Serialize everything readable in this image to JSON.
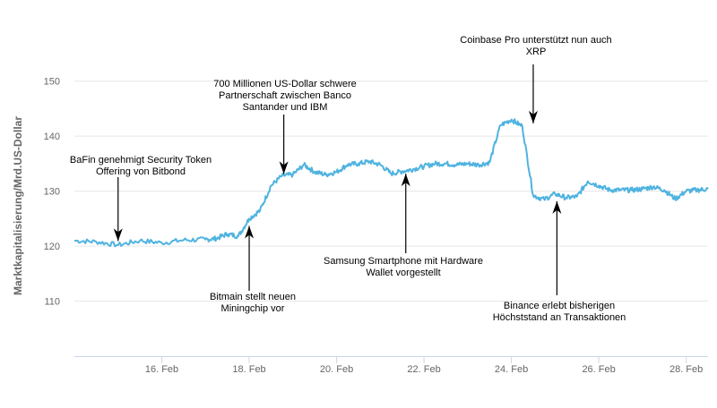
{
  "colors": {
    "series": "#4fb3e0",
    "arrow": "#000000"
  },
  "chart_data": {
    "type": "line",
    "ylabel": "Marktkapitalisierung/Mrd.US-Dollar",
    "ylim": [
      100,
      155
    ],
    "xlim": [
      "2019-02-14",
      "2019-02-28 12:00"
    ],
    "yticks": [
      110,
      120,
      130,
      140,
      150
    ],
    "xticks": [
      "16. Feb",
      "18. Feb",
      "20. Feb",
      "22. Feb",
      "24. Feb",
      "26. Feb",
      "28. Feb"
    ],
    "grid": true,
    "legend": "none",
    "series": [
      {
        "x": [
          "2019-02-14 00:00",
          "2019-02-14 12:00",
          "2019-02-15 00:00",
          "2019-02-15 12:00",
          "2019-02-16 00:00",
          "2019-02-16 12:00",
          "2019-02-17 00:00",
          "2019-02-17 06:00",
          "2019-02-17 12:00",
          "2019-02-17 18:00",
          "2019-02-18 00:00",
          "2019-02-18 06:00",
          "2019-02-18 12:00",
          "2019-02-18 18:00",
          "2019-02-19 00:00",
          "2019-02-19 06:00",
          "2019-02-19 12:00",
          "2019-02-19 18:00",
          "2019-02-20 00:00",
          "2019-02-20 06:00",
          "2019-02-20 12:00",
          "2019-02-20 18:00",
          "2019-02-21 00:00",
          "2019-02-21 06:00",
          "2019-02-21 12:00",
          "2019-02-21 18:00",
          "2019-02-22 00:00",
          "2019-02-22 06:00",
          "2019-02-22 12:00",
          "2019-02-22 18:00",
          "2019-02-23 00:00",
          "2019-02-23 06:00",
          "2019-02-23 12:00",
          "2019-02-23 18:00",
          "2019-02-24 00:00",
          "2019-02-24 06:00",
          "2019-02-24 12:00",
          "2019-02-24 18:00",
          "2019-02-25 00:00",
          "2019-02-25 06:00",
          "2019-02-25 12:00",
          "2019-02-25 18:00",
          "2019-02-26 00:00",
          "2019-02-26 06:00",
          "2019-02-26 12:00",
          "2019-02-26 18:00",
          "2019-02-27 00:00",
          "2019-02-27 06:00",
          "2019-02-27 12:00",
          "2019-02-27 18:00",
          "2019-02-28 00:00",
          "2019-02-28 06:00",
          "2019-02-28 12:00"
        ],
        "values": [
          121,
          120.8,
          120.2,
          121,
          120.6,
          121.1,
          121.2,
          121.4,
          122.2,
          121.8,
          125,
          126.5,
          131,
          132.8,
          133,
          134.8,
          133.5,
          133,
          133.5,
          134.8,
          135,
          135.4,
          134.8,
          133.2,
          133.6,
          134,
          134.5,
          135,
          135,
          134.8,
          135,
          134.8,
          135.2,
          142,
          143,
          141.8,
          129.2,
          128.5,
          129.5,
          128.8,
          129,
          131.8,
          131,
          130.2,
          130.2,
          130.2,
          130.4,
          130.8,
          130.2,
          128.6,
          130,
          130.2,
          130.4
        ]
      }
    ],
    "annotations": [
      {
        "date": "2019-02-15 00:00",
        "value": 120.6,
        "side": "above",
        "lines": [
          "BaFin genehmigt Security Token",
          "Offering von Bitbond"
        ]
      },
      {
        "date": "2019-02-18 00:00",
        "value": 124.0,
        "side": "below",
        "lines": [
          "Bitmain stellt neuen",
          "Miningchip vor"
        ]
      },
      {
        "date": "2019-02-18 19:00",
        "value": 132.8,
        "side": "above",
        "lines": [
          "700 Millionen US-Dollar schwere",
          "Partnerschaft zwischen Banco",
          "Santander und IBM"
        ]
      },
      {
        "date": "2019-02-21 14:00",
        "value": 133.5,
        "side": "below",
        "lines": [
          "Samsung Smartphone mit Hardware",
          "Wallet vorgestellt"
        ]
      },
      {
        "date": "2019-02-24 12:00",
        "value": 142.0,
        "side": "above",
        "lines": [
          "Coinbase Pro unterstützt nun auch",
          "XRP"
        ]
      },
      {
        "date": "2019-02-25 01:00",
        "value": 128.5,
        "side": "below",
        "lines": [
          "Binance erlebt bisherigen",
          "Höchststand an Transaktionen"
        ]
      }
    ]
  }
}
